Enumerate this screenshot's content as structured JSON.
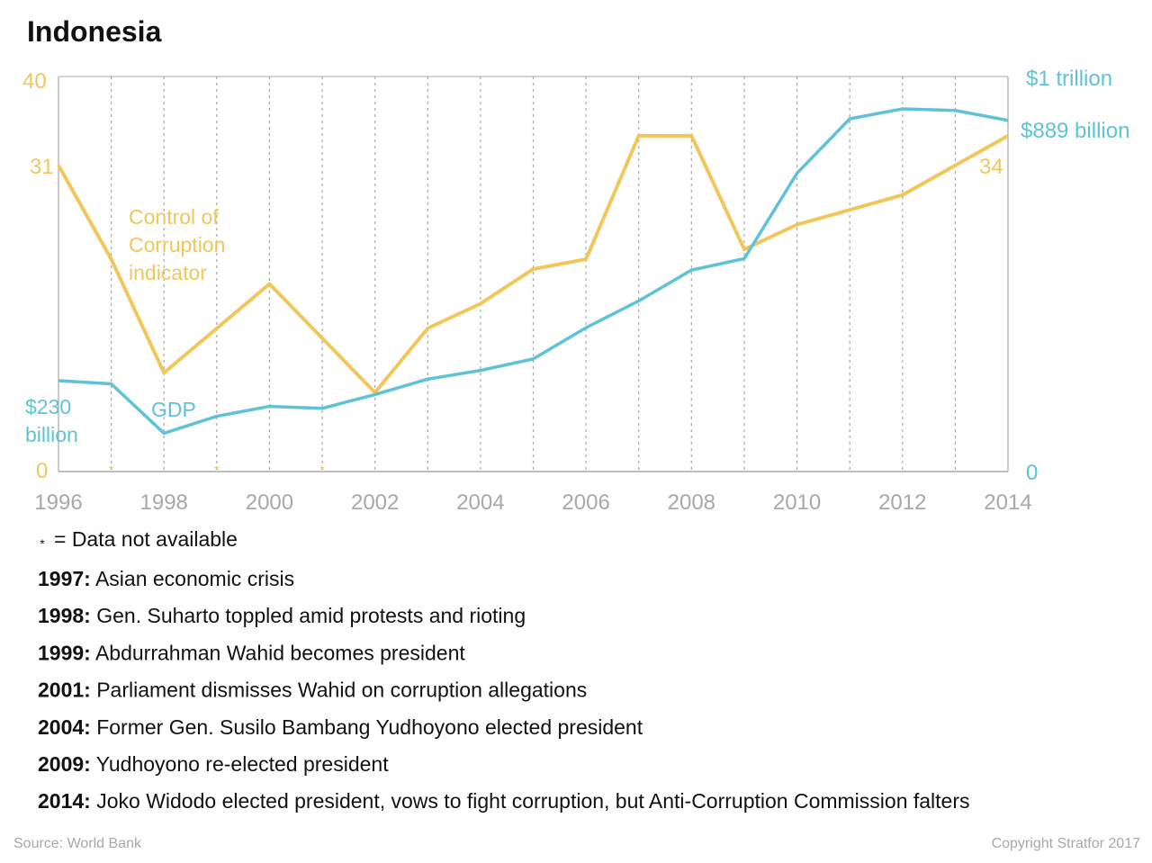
{
  "title": "Indonesia",
  "colors": {
    "corruption": "#f2c75a",
    "gdp": "#5ec3d6",
    "axis": "#a8a8a8"
  },
  "chart_data": {
    "type": "line",
    "x": [
      1996,
      1997,
      1998,
      1999,
      2000,
      2001,
      2002,
      2003,
      2004,
      2005,
      2006,
      2007,
      2008,
      2009,
      2010,
      2011,
      2012,
      2013,
      2014
    ],
    "xticks": [
      "1996",
      "1998",
      "2000",
      "2002",
      "2004",
      "2006",
      "2008",
      "2010",
      "2012",
      "2014"
    ],
    "missing_years": [
      1997,
      1999,
      2001
    ],
    "missing_marker": "*",
    "series": [
      {
        "name": "Control of Corruption indicator",
        "axis": "left",
        "values": [
          31,
          21.5,
          10,
          14.5,
          19,
          13.5,
          8,
          14.5,
          17,
          20.5,
          21.5,
          34,
          34,
          22.5,
          25,
          26.5,
          28,
          31,
          34
        ]
      },
      {
        "name": "GDP",
        "axis": "right",
        "values": [
          230,
          222,
          97,
          140,
          165,
          160,
          195,
          234,
          256,
          285,
          364,
          432,
          510,
          539,
          755,
          893,
          918,
          914,
          889
        ]
      }
    ],
    "ylim_left": [
      0,
      40
    ],
    "ylim_right": [
      0,
      1000
    ],
    "grid": "vertical dotted lines at each year"
  },
  "axis_labels": {
    "left_top": "40",
    "left_start": "31",
    "left_zero": "0",
    "right_top": "$1 trillion",
    "right_end": "$889 billion",
    "right_zero": "0",
    "left_end_value": "34"
  },
  "series_labels": {
    "corruption": [
      "Control of",
      "Corruption",
      "indicator"
    ],
    "gdp": "GDP",
    "gdp_start": [
      "$230",
      "billion"
    ]
  },
  "legend_note": "= Data not available",
  "events": [
    {
      "year": "1997:",
      "text": "Asian economic crisis"
    },
    {
      "year": "1998:",
      "text": "Gen. Suharto toppled amid protests and rioting"
    },
    {
      "year": "1999:",
      "text": "Abdurrahman Wahid becomes president"
    },
    {
      "year": "2001:",
      "text": "Parliament dismisses Wahid on corruption allegations"
    },
    {
      "year": "2004:",
      "text": "Former Gen. Susilo Bambang Yudhoyono elected president"
    },
    {
      "year": "2009:",
      "text": "Yudhoyono re-elected president"
    },
    {
      "year": "2014:",
      "text": "Joko Widodo elected president, vows to fight corruption, but Anti-Corruption Commission falters"
    }
  ],
  "footer": {
    "source": "Source: World Bank",
    "copyright": "Copyright Stratfor 2017"
  }
}
